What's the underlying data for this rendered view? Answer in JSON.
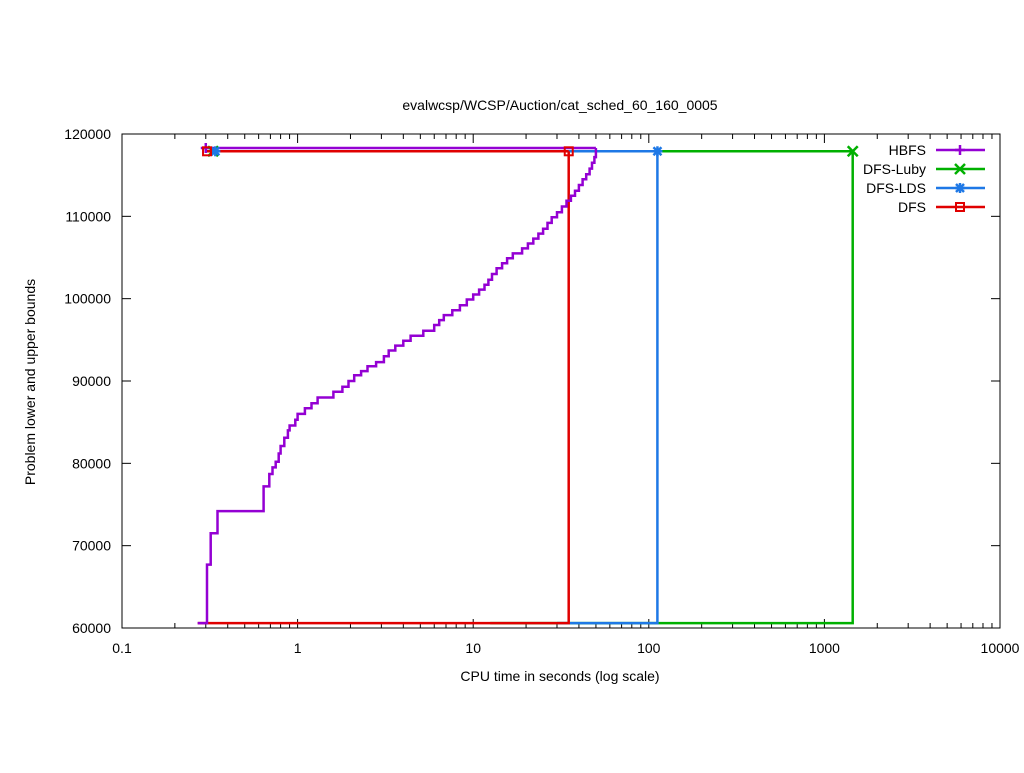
{
  "chart_data": {
    "type": "line",
    "title": "evalwcsp/WCSP/Auction/cat_sched_60_160_0005",
    "xlabel": "CPU time in seconds (log scale)",
    "ylabel": "Problem lower and upper bounds",
    "xscale": "log",
    "xlim": [
      0.1,
      10000
    ],
    "ylim": [
      60000,
      120000
    ],
    "x_ticks": [
      {
        "value": 0.1,
        "label": "0.1"
      },
      {
        "value": 1,
        "label": "1"
      },
      {
        "value": 10,
        "label": "10"
      },
      {
        "value": 100,
        "label": "100"
      },
      {
        "value": 1000,
        "label": "1000"
      },
      {
        "value": 10000,
        "label": "10000"
      }
    ],
    "y_ticks": [
      {
        "value": 60000,
        "label": "60000"
      },
      {
        "value": 70000,
        "label": "70000"
      },
      {
        "value": 80000,
        "label": "80000"
      },
      {
        "value": 90000,
        "label": "90000"
      },
      {
        "value": 100000,
        "label": "100000"
      },
      {
        "value": 110000,
        "label": "110000"
      },
      {
        "value": 120000,
        "label": "120000"
      }
    ],
    "grid": false,
    "legend": "top-right",
    "series": [
      {
        "name": "HBFS",
        "color": "#9400d3",
        "marker": "plus",
        "upper": [
          [
            0.3,
            118300
          ],
          [
            50,
            118300
          ]
        ],
        "lower": [
          [
            0.27,
            60600
          ],
          [
            0.305,
            60600
          ],
          [
            0.305,
            67700
          ],
          [
            0.32,
            67700
          ],
          [
            0.32,
            71500
          ],
          [
            0.35,
            71500
          ],
          [
            0.35,
            74200
          ],
          [
            0.64,
            74200
          ],
          [
            0.64,
            77200
          ],
          [
            0.69,
            77200
          ],
          [
            0.69,
            78700
          ],
          [
            0.72,
            78700
          ],
          [
            0.72,
            79500
          ],
          [
            0.75,
            79500
          ],
          [
            0.75,
            80200
          ],
          [
            0.78,
            80200
          ],
          [
            0.78,
            81200
          ],
          [
            0.8,
            81200
          ],
          [
            0.8,
            82100
          ],
          [
            0.84,
            82100
          ],
          [
            0.84,
            83100
          ],
          [
            0.88,
            83100
          ],
          [
            0.88,
            84000
          ],
          [
            0.9,
            84000
          ],
          [
            0.9,
            84600
          ],
          [
            0.97,
            84600
          ],
          [
            0.97,
            85300
          ],
          [
            1.0,
            85300
          ],
          [
            1.0,
            86000
          ],
          [
            1.1,
            86000
          ],
          [
            1.1,
            86700
          ],
          [
            1.2,
            86700
          ],
          [
            1.2,
            87300
          ],
          [
            1.3,
            87300
          ],
          [
            1.3,
            88000
          ],
          [
            1.6,
            88000
          ],
          [
            1.6,
            88700
          ],
          [
            1.8,
            88700
          ],
          [
            1.8,
            89300
          ],
          [
            1.95,
            89300
          ],
          [
            1.95,
            90000
          ],
          [
            2.1,
            90000
          ],
          [
            2.1,
            90700
          ],
          [
            2.3,
            90700
          ],
          [
            2.3,
            91200
          ],
          [
            2.5,
            91200
          ],
          [
            2.5,
            91800
          ],
          [
            2.8,
            91800
          ],
          [
            2.8,
            92300
          ],
          [
            3.1,
            92300
          ],
          [
            3.1,
            93000
          ],
          [
            3.3,
            93000
          ],
          [
            3.3,
            93700
          ],
          [
            3.6,
            93700
          ],
          [
            3.6,
            94300
          ],
          [
            4.0,
            94300
          ],
          [
            4.0,
            94900
          ],
          [
            4.4,
            94900
          ],
          [
            4.4,
            95500
          ],
          [
            5.2,
            95500
          ],
          [
            5.2,
            96100
          ],
          [
            6.0,
            96100
          ],
          [
            6.0,
            96800
          ],
          [
            6.4,
            96800
          ],
          [
            6.4,
            97400
          ],
          [
            6.8,
            97400
          ],
          [
            6.8,
            98000
          ],
          [
            7.6,
            98000
          ],
          [
            7.6,
            98600
          ],
          [
            8.4,
            98600
          ],
          [
            8.4,
            99200
          ],
          [
            9.2,
            99200
          ],
          [
            9.2,
            99900
          ],
          [
            10.0,
            99900
          ],
          [
            10.0,
            100500
          ],
          [
            10.8,
            100500
          ],
          [
            10.8,
            101100
          ],
          [
            11.6,
            101100
          ],
          [
            11.6,
            101700
          ],
          [
            12.2,
            101700
          ],
          [
            12.2,
            102300
          ],
          [
            12.8,
            102300
          ],
          [
            12.8,
            103000
          ],
          [
            13.6,
            103000
          ],
          [
            13.6,
            103700
          ],
          [
            14.6,
            103700
          ],
          [
            14.6,
            104300
          ],
          [
            15.6,
            104300
          ],
          [
            15.6,
            104900
          ],
          [
            16.8,
            104900
          ],
          [
            16.8,
            105500
          ],
          [
            19.0,
            105500
          ],
          [
            19.0,
            106100
          ],
          [
            20.5,
            106100
          ],
          [
            20.5,
            106700
          ],
          [
            22.0,
            106700
          ],
          [
            22.0,
            107300
          ],
          [
            23.5,
            107300
          ],
          [
            23.5,
            107900
          ],
          [
            25.0,
            107900
          ],
          [
            25.0,
            108500
          ],
          [
            26.5,
            108500
          ],
          [
            26.5,
            109200
          ],
          [
            28.0,
            109200
          ],
          [
            28.0,
            109900
          ],
          [
            30.0,
            109900
          ],
          [
            30.0,
            110500
          ],
          [
            32.0,
            110500
          ],
          [
            32.0,
            111200
          ],
          [
            34.0,
            111200
          ],
          [
            34.0,
            111900
          ],
          [
            36.0,
            111900
          ],
          [
            36.0,
            112500
          ],
          [
            38.0,
            112500
          ],
          [
            38.0,
            113100
          ],
          [
            40.0,
            113100
          ],
          [
            40.0,
            113800
          ],
          [
            42.0,
            113800
          ],
          [
            42.0,
            114500
          ],
          [
            44.0,
            114500
          ],
          [
            44.0,
            115100
          ],
          [
            46.0,
            115100
          ],
          [
            46.0,
            115800
          ],
          [
            47.5,
            115800
          ],
          [
            47.5,
            116500
          ],
          [
            49.0,
            116500
          ],
          [
            49.0,
            117200
          ],
          [
            50.0,
            117200
          ],
          [
            50.0,
            118300
          ]
        ]
      },
      {
        "name": "DFS-Luby",
        "color": "#00b000",
        "marker": "x",
        "upper": [
          [
            0.3,
            117900
          ],
          [
            1450,
            117900
          ]
        ],
        "lower": [
          [
            12.5,
            60600
          ],
          [
            1450,
            60600
          ],
          [
            1450,
            117900
          ]
        ]
      },
      {
        "name": "DFS-LDS",
        "color": "#1e78e6",
        "marker": "star",
        "upper": [
          [
            0.3,
            117900
          ],
          [
            112,
            117900
          ]
        ],
        "lower": [
          [
            30,
            60600
          ],
          [
            112,
            60600
          ],
          [
            112,
            117900
          ]
        ]
      },
      {
        "name": "DFS",
        "color": "#e00000",
        "marker": "square",
        "upper": [
          [
            0.3,
            117900
          ],
          [
            35,
            117900
          ]
        ],
        "lower": [
          [
            0.27,
            60600
          ],
          [
            35,
            60600
          ],
          [
            35,
            117900
          ]
        ]
      }
    ],
    "markers": [
      {
        "series": "HBFS",
        "points": [
          [
            0.3,
            118300
          ]
        ]
      },
      {
        "series": "DFS-Luby",
        "points": [
          [
            0.33,
            117900
          ],
          [
            1450,
            117900
          ]
        ]
      },
      {
        "series": "DFS-LDS",
        "points": [
          [
            0.34,
            117900
          ],
          [
            112,
            117900
          ]
        ]
      },
      {
        "series": "DFS",
        "points": [
          [
            0.305,
            117900
          ],
          [
            35,
            117900
          ]
        ]
      }
    ]
  }
}
